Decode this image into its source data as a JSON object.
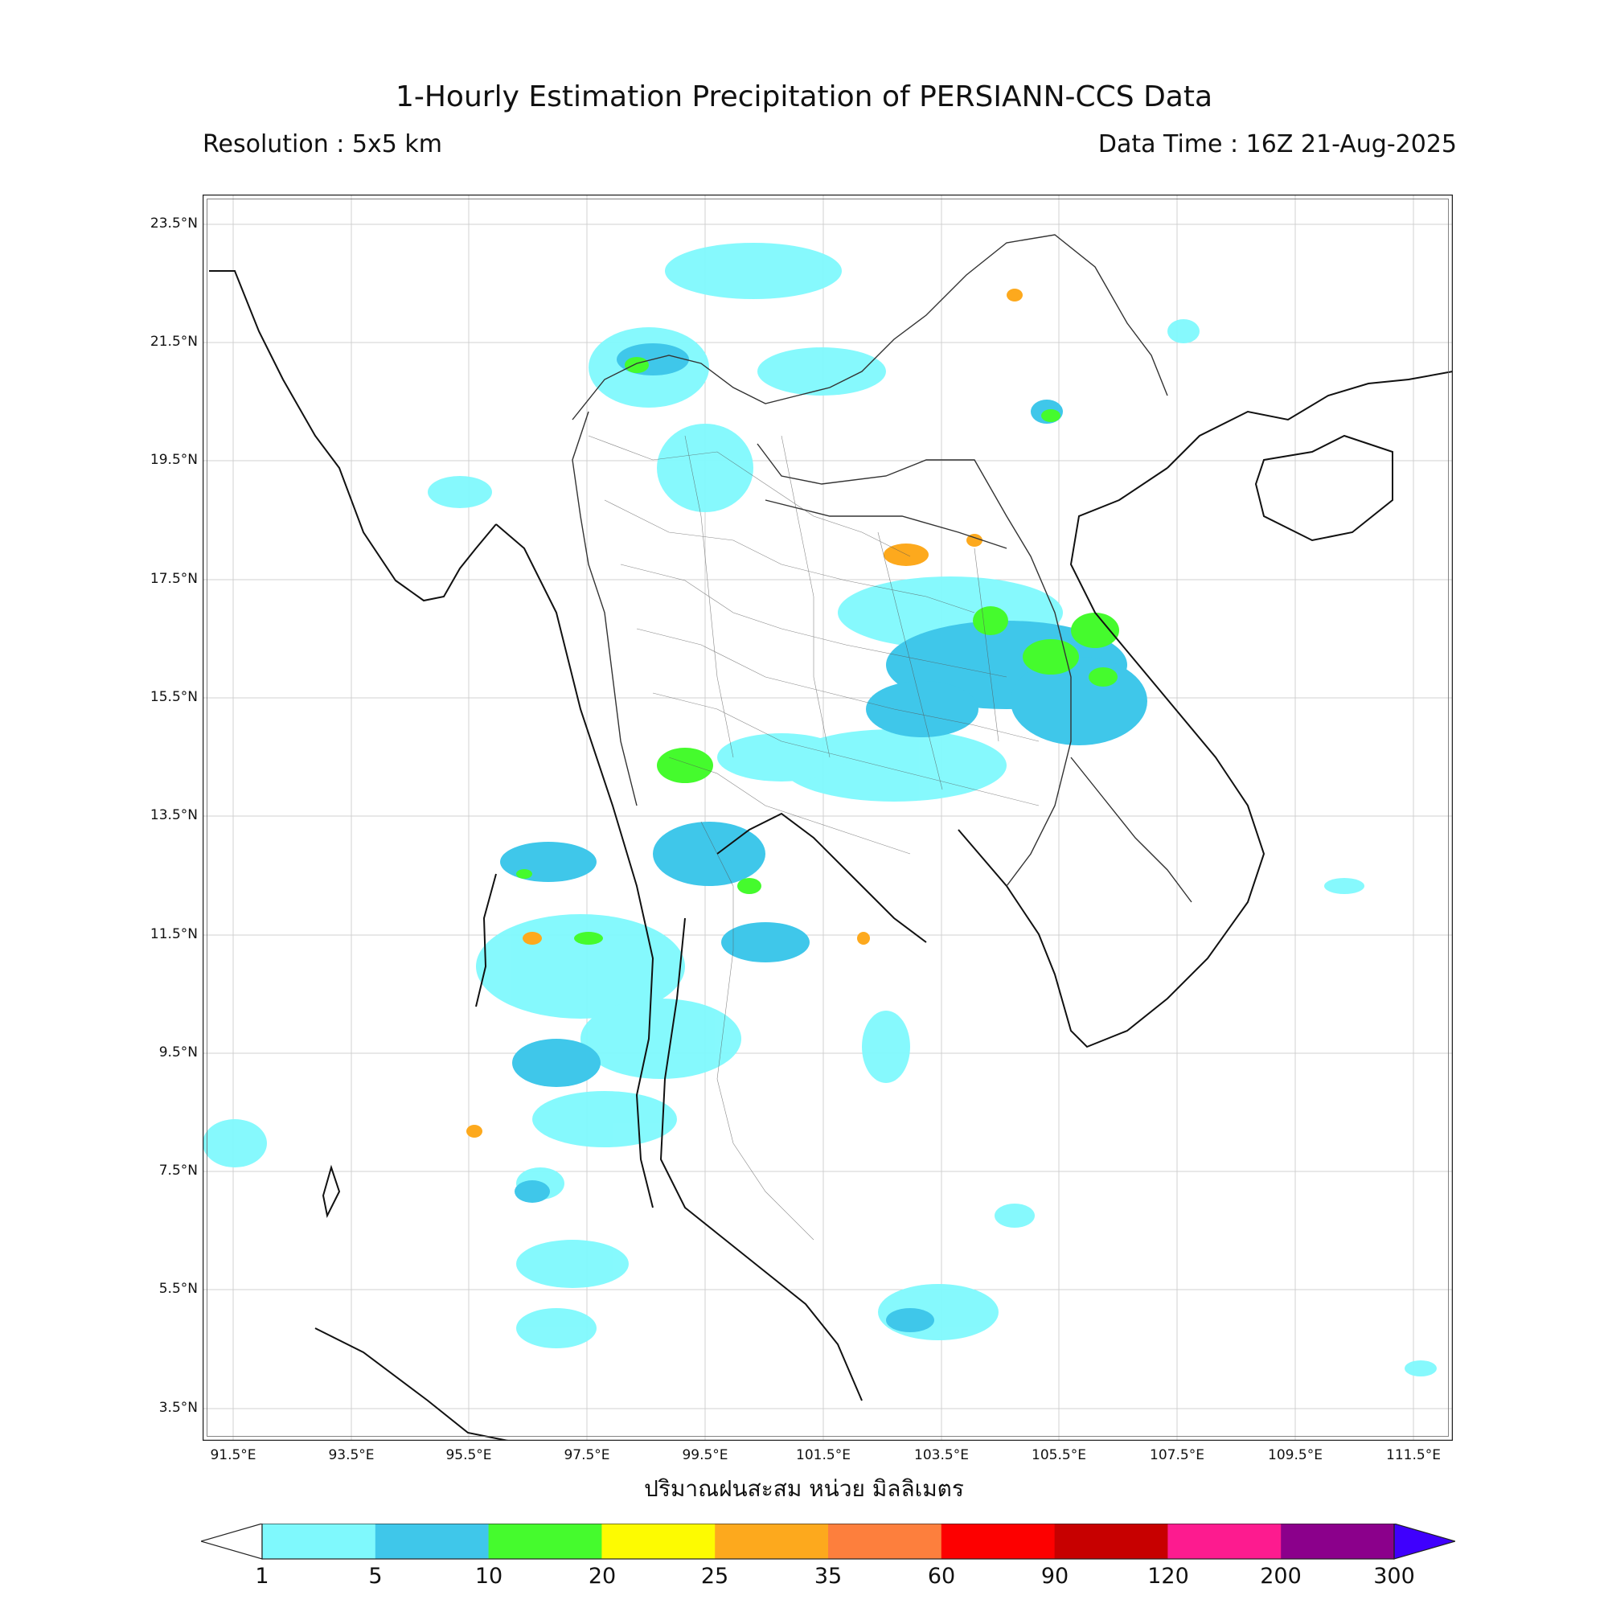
{
  "title": "1-Hourly Estimation Precipitation of PERSIANN-CCS Data",
  "resolution": "Resolution : 5x5 km",
  "data_time": "Data Time : 16Z 21-Aug-2025",
  "lat_labels": [
    "23.5°N",
    "21.5°N",
    "19.5°N",
    "17.5°N",
    "15.5°N",
    "13.5°N",
    "11.5°N",
    "9.5°N",
    "7.5°N",
    "5.5°N",
    "3.5°N"
  ],
  "lon_labels": [
    "91.5°E",
    "93.5°E",
    "95.5°E",
    "97.5°E",
    "99.5°E",
    "101.5°E",
    "103.5°E",
    "105.5°E",
    "107.5°E",
    "109.5°E",
    "111.5°E"
  ],
  "unit_label": "ปริมาณฝนสะสม หน่วย มิลลิเมตร",
  "colorbar": {
    "ticks": [
      "1",
      "5",
      "10",
      "20",
      "25",
      "35",
      "60",
      "90",
      "120",
      "200",
      "300"
    ],
    "colors": [
      "#7ff9fd",
      "#3fc7ea",
      "#45fb2d",
      "#fdfb01",
      "#fda91d",
      "#fd7f3d",
      "#fd0000",
      "#c70000",
      "#fd1b8f",
      "#8b008b"
    ],
    "over_color": "#3f00fd"
  }
}
